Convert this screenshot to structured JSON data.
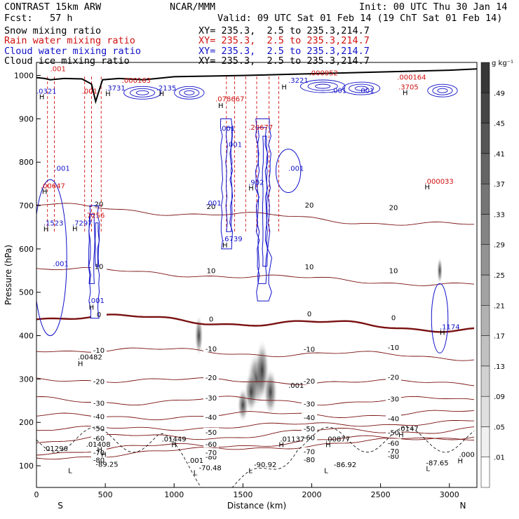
{
  "header": {
    "model": "CONTRAST 15km ARW",
    "center": "NCAR/MMM",
    "init": "Init: 00 UTC Thu 30 Jan 14",
    "fcst": "Fcst:   57 h",
    "valid": "Valid: 09 UTC Sat 01 Feb 14 (19 ChT Sat 01 Feb 14)"
  },
  "fields": [
    {
      "name": "Snow mixing ratio",
      "xy": "XY= 235.3,  2.5 to 235.3,214.7",
      "color": "#000000"
    },
    {
      "name": "Rain water mixing ratio",
      "xy": "XY= 235.3,  2.5 to 235.3,214.7",
      "color": "#d01010"
    },
    {
      "name": "Cloud water mixing ratio",
      "xy": "XY= 235.3,  2.5 to 235.3,214.7",
      "color": "#1010c8"
    },
    {
      "name": "Cloud ice mixing ratio",
      "xy": "XY= 235.3,  2.5 to 235.3,214.7",
      "color": "#000000"
    }
  ],
  "chart_data": {
    "type": "cross-section",
    "xlabel": "Distance (km)",
    "ylabel": "Pressure (hPa)",
    "xlim": [
      0,
      3200
    ],
    "ylim": [
      1030,
      50
    ],
    "x_ticks": [
      0,
      500,
      1000,
      1500,
      2000,
      2500,
      3000
    ],
    "y_ticks": [
      100,
      200,
      300,
      400,
      500,
      600,
      700,
      800,
      900,
      1000
    ],
    "x_end_labels": {
      "left": "S",
      "right": "N"
    },
    "colorbar": {
      "unit": "g kg⁻¹",
      "ticks": [
        ".01",
        ".05",
        ".09",
        ".13",
        ".17",
        ".21",
        ".25",
        ".29",
        ".33",
        ".37",
        ".41",
        ".45",
        ".49"
      ]
    },
    "temperature_contours": {
      "color": "#7a1010",
      "interval": 10,
      "labels": [
        "-80",
        "-70",
        "-60",
        "-50",
        "-40",
        "-30",
        "-20",
        "-10",
        "0",
        "10",
        "20"
      ],
      "lines": [
        {
          "t": -80,
          "p": 118
        },
        {
          "t": -70,
          "p": 132
        },
        {
          "t": -60,
          "p": 158
        },
        {
          "t": -50,
          "p": 182
        },
        {
          "t": -40,
          "p": 212
        },
        {
          "t": -30,
          "p": 250
        },
        {
          "t": -20,
          "p": 300
        },
        {
          "t": -10,
          "p": 370
        },
        {
          "t": 0,
          "p": 445
        },
        {
          "t": 10,
          "p": 555
        },
        {
          "t": 20,
          "p": 700
        }
      ]
    },
    "terrain": [
      [
        0,
        995
      ],
      [
        60,
        993
      ],
      [
        100,
        990
      ],
      [
        200,
        993
      ],
      [
        330,
        992
      ],
      [
        400,
        980
      ],
      [
        430,
        940
      ],
      [
        450,
        960
      ],
      [
        480,
        990
      ],
      [
        600,
        993
      ],
      [
        780,
        990
      ],
      [
        1000,
        997
      ],
      [
        1500,
        1000
      ],
      [
        2000,
        1004
      ],
      [
        2500,
        1008
      ],
      [
        3000,
        1012
      ],
      [
        3200,
        1015
      ]
    ],
    "labels": [
      {
        "text": "-89.25",
        "x": 430,
        "p": 98,
        "color": "#000000"
      },
      {
        "text": "-70.48",
        "x": 1180,
        "p": 90,
        "color": "#000000"
      },
      {
        "text": "-90.92",
        "x": 1580,
        "p": 97,
        "color": "#000000"
      },
      {
        "text": "-86.92",
        "x": 2160,
        "p": 97,
        "color": "#000000"
      },
      {
        "text": "-87.65",
        "x": 2830,
        "p": 101,
        "color": "#000000"
      },
      {
        "text": ".001",
        "x": 1100,
        "p": 107,
        "color": "#000000"
      },
      {
        "text": ".01296",
        "x": 50,
        "p": 134,
        "color": "#000000"
      },
      {
        "text": ".01408",
        "x": 360,
        "p": 144,
        "color": "#000000"
      },
      {
        "text": ".01449",
        "x": 910,
        "p": 156,
        "color": "#000000"
      },
      {
        "text": ".01137",
        "x": 1770,
        "p": 156,
        "color": "#000000"
      },
      {
        "text": ".00877",
        "x": 2100,
        "p": 156,
        "color": "#000000"
      },
      {
        "text": ".0147",
        "x": 2630,
        "p": 180,
        "color": "#000000"
      },
      {
        "text": ".000",
        "x": 3070,
        "p": 120,
        "color": "#000000"
      },
      {
        "text": ".001",
        "x": 1830,
        "p": 280,
        "color": "#000000"
      },
      {
        "text": ".00482",
        "x": 300,
        "p": 345,
        "color": "#000000"
      },
      {
        "text": ".1174",
        "x": 2930,
        "p": 415,
        "color": "#1010c8"
      },
      {
        "text": ".001",
        "x": 380,
        "p": 475,
        "color": "#1010c8"
      },
      {
        "text": ".001",
        "x": 120,
        "p": 560,
        "color": "#1010c8"
      },
      {
        "text": ".6739",
        "x": 1350,
        "p": 618,
        "color": "#1010c8"
      },
      {
        "text": ".1523",
        "x": 50,
        "p": 654,
        "color": "#1010c8"
      },
      {
        "text": ".7297",
        "x": 260,
        "p": 654,
        "color": "#1010c8"
      },
      {
        "text": ".7256",
        "x": 350,
        "p": 672,
        "color": "#d01010"
      },
      {
        "text": ".001",
        "x": 1230,
        "p": 700,
        "color": "#1010c8"
      },
      {
        "text": ".00647",
        "x": 30,
        "p": 740,
        "color": "#d01010"
      },
      {
        "text": ".902",
        "x": 1540,
        "p": 748,
        "color": "#1010c8"
      },
      {
        "text": ".001",
        "x": 1830,
        "p": 780,
        "color": "#1010c8"
      },
      {
        "text": ".001",
        "x": 130,
        "p": 780,
        "color": "#1010c8"
      },
      {
        "text": ".000033",
        "x": 2820,
        "p": 750,
        "color": "#d01010"
      },
      {
        "text": ".001",
        "x": 1380,
        "p": 835,
        "color": "#1010c8"
      },
      {
        "text": ".001",
        "x": 1330,
        "p": 872,
        "color": "#1010c8"
      },
      {
        "text": ".20677",
        "x": 1540,
        "p": 875,
        "color": "#d01010"
      },
      {
        "text": ".078667",
        "x": 1300,
        "p": 940,
        "color": "#d01010"
      },
      {
        "text": ".0321",
        "x": 0,
        "p": 958,
        "color": "#1010c8"
      },
      {
        "text": ".001",
        "x": 330,
        "p": 958,
        "color": "#d01010"
      },
      {
        "text": ".3731",
        "x": 500,
        "p": 965,
        "color": "#1010c8"
      },
      {
        "text": ".000163",
        "x": 620,
        "p": 983,
        "color": "#d01010"
      },
      {
        "text": ".2135",
        "x": 870,
        "p": 965,
        "color": "#1010c8"
      },
      {
        "text": ".001",
        "x": 2140,
        "p": 960,
        "color": "#1010c8"
      },
      {
        "text": ".001",
        "x": 2340,
        "p": 960,
        "color": "#1010c8"
      },
      {
        "text": ".3705",
        "x": 2630,
        "p": 968,
        "color": "#d01010"
      },
      {
        "text": ".000164",
        "x": 2620,
        "p": 990,
        "color": "#d01010"
      },
      {
        "text": ".3221",
        "x": 1830,
        "p": 983,
        "color": "#1010c8"
      },
      {
        "text": ".000952",
        "x": 1980,
        "p": 1000,
        "color": "#d01010"
      },
      {
        "text": ".001",
        "x": 100,
        "p": 1010,
        "color": "#d01010"
      }
    ],
    "H_markers": [
      [
        470,
        120
      ],
      [
        440,
        132
      ],
      [
        980,
        143
      ],
      [
        1760,
        143
      ],
      [
        2100,
        143
      ],
      [
        2630,
        166
      ],
      [
        3060,
        106
      ],
      [
        300,
        330
      ],
      [
        2930,
        402
      ],
      [
        380,
        460
      ],
      [
        50,
        640
      ],
      [
        1350,
        603
      ],
      [
        260,
        641
      ],
      [
        40,
        727
      ],
      [
        1540,
        735
      ],
      [
        2820,
        737
      ],
      [
        1320,
        925
      ],
      [
        20,
        945
      ],
      [
        500,
        952
      ],
      [
        890,
        952
      ],
      [
        2660,
        955
      ],
      [
        1780,
        968
      ]
    ],
    "L_markers": [
      [
        230,
        83
      ],
      [
        1140,
        78
      ],
      [
        1540,
        83
      ],
      [
        2090,
        83
      ],
      [
        2830,
        88
      ]
    ]
  }
}
